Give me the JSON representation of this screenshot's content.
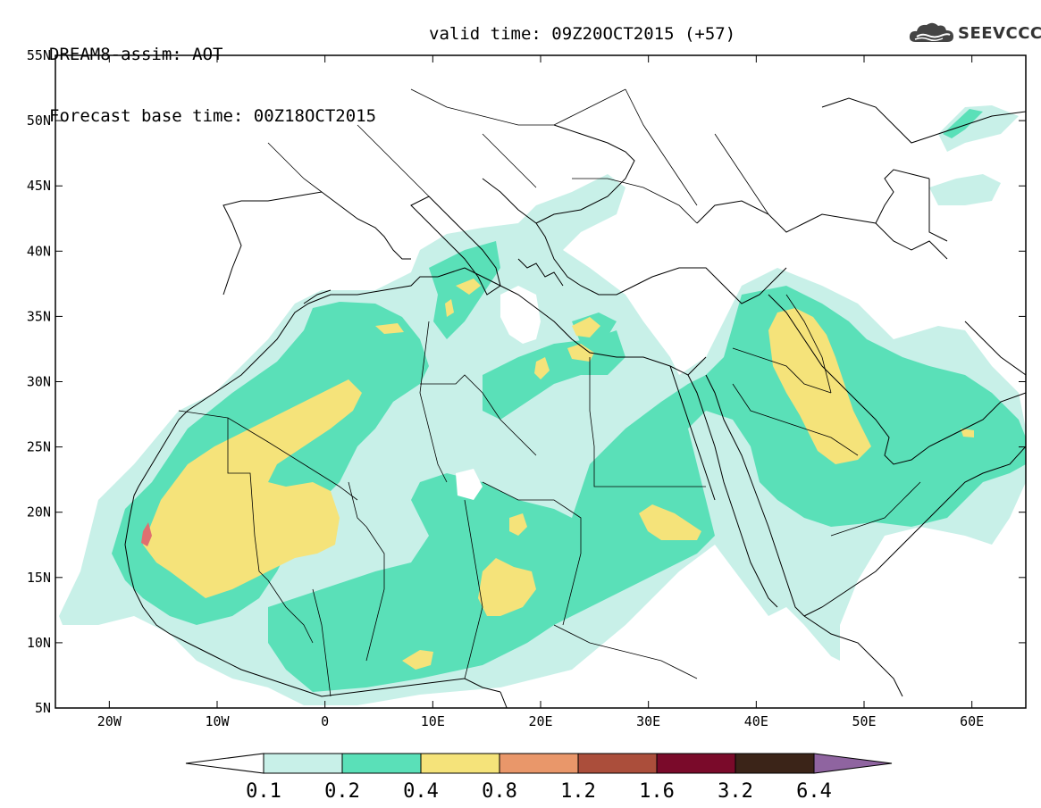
{
  "header": {
    "line1": "DREAM8-assim: AOT",
    "line2": "Forecast base time: 00Z18OCT2015",
    "valid": "valid time: 09Z20OCT2015 (+57)"
  },
  "logo": {
    "text": "SEEVCCC",
    "icon": "cloud-logo-icon"
  },
  "axes": {
    "lon_range": [
      -25,
      65
    ],
    "lat_range": [
      5,
      55
    ],
    "x_ticks": [
      {
        "value": -20,
        "label": "20W"
      },
      {
        "value": -10,
        "label": "10W"
      },
      {
        "value": 0,
        "label": "0"
      },
      {
        "value": 10,
        "label": "10E"
      },
      {
        "value": 20,
        "label": "20E"
      },
      {
        "value": 30,
        "label": "30E"
      },
      {
        "value": 40,
        "label": "40E"
      },
      {
        "value": 50,
        "label": "50E"
      },
      {
        "value": 60,
        "label": "60E"
      }
    ],
    "y_ticks": [
      {
        "value": 5,
        "label": "5N"
      },
      {
        "value": 10,
        "label": "10N"
      },
      {
        "value": 15,
        "label": "15N"
      },
      {
        "value": 20,
        "label": "20N"
      },
      {
        "value": 25,
        "label": "25N"
      },
      {
        "value": 30,
        "label": "30N"
      },
      {
        "value": 35,
        "label": "35N"
      },
      {
        "value": 40,
        "label": "40N"
      },
      {
        "value": 45,
        "label": "45N"
      },
      {
        "value": 50,
        "label": "50N"
      },
      {
        "value": 55,
        "label": "55N"
      }
    ]
  },
  "colorbar": {
    "boundaries": [
      "0.1",
      "0.2",
      "0.4",
      "0.8",
      "1.2",
      "1.6",
      "3.2",
      "6.4"
    ],
    "colors": [
      "#c8f0e8",
      "#5ae0b8",
      "#f5e37a",
      "#e9976a",
      "#ab4e3b",
      "#7a0a2a",
      "#3b2418"
    ],
    "under_color": "#ffffff",
    "over_color": "#8f64a0"
  },
  "aot_levels": {
    "l1": "#c8f0e8",
    "l2": "#5ae0b8",
    "l3": "#f5e37a",
    "l4": "#e07070"
  },
  "colors": {
    "coast": "#000000",
    "frame": "#000000"
  }
}
